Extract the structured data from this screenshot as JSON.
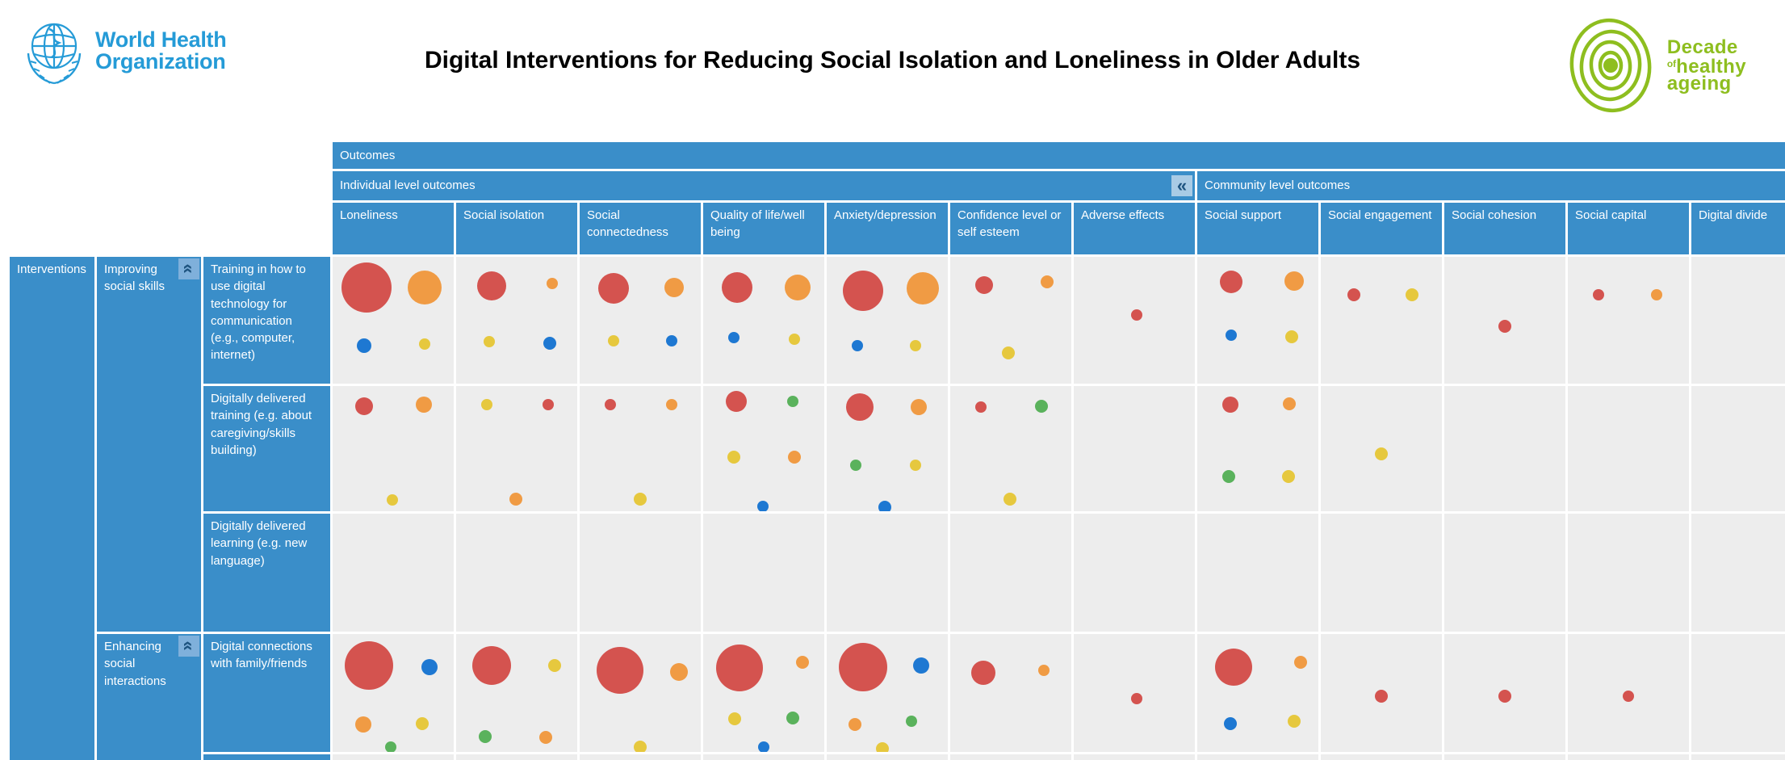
{
  "header": {
    "who_logo": {
      "line1": "World Health",
      "line2": "Organization",
      "color": "#259BD7"
    },
    "title": "Digital Interventions for Reducing Social Isolation and Loneliness in Older Adults",
    "decade_logo": {
      "line1": "Decade",
      "of": "of",
      "line2": "healthy",
      "line3": "ageing",
      "color": "#8EBE1F"
    }
  },
  "matrix": {
    "theme": {
      "header_bg": "#3A8EC9",
      "cell_bg": "#EDEDED",
      "collapse_btn_bg_header": "#A9CBE5",
      "collapse_btn_bg_group": "#7FB0DB",
      "collapse_btn_glyph": "#1E5480"
    },
    "palette": {
      "red": "#D4534F",
      "orange": "#F09B44",
      "blue": "#1E78D2",
      "yellow": "#E6C83E",
      "green": "#5AB25C"
    },
    "outcomes_label": "Outcomes",
    "column_groups": [
      {
        "label": "Individual level outcomes",
        "columns": 7,
        "collapse_icon": "«"
      },
      {
        "label": "Community level outcomes",
        "columns": 5
      }
    ],
    "columns": [
      {
        "id": "loneliness",
        "label": "Loneliness"
      },
      {
        "id": "social_isolation",
        "label": "Social isolation"
      },
      {
        "id": "social_connectedness",
        "label": "Social connectedness"
      },
      {
        "id": "quality_of_life",
        "label": "Quality of life/well being"
      },
      {
        "id": "anxiety_depression",
        "label": "Anxiety/depression"
      },
      {
        "id": "confidence",
        "label": "Confidence level or self esteem"
      },
      {
        "id": "adverse_effects",
        "label": "Adverse effects"
      },
      {
        "id": "social_support",
        "label": "Social support"
      },
      {
        "id": "social_engagement",
        "label": "Social engagement"
      },
      {
        "id": "social_cohesion",
        "label": "Social cohesion"
      },
      {
        "id": "social_capital",
        "label": "Social capital"
      },
      {
        "id": "digital_divide",
        "label": "Digital divide"
      }
    ],
    "interventions_label": "Interventions",
    "row_groups": [
      {
        "label": "Improving social skills",
        "rows": 3,
        "collapse_icon": "«"
      },
      {
        "label": "Enhancing social interactions",
        "rows": 2,
        "collapse_icon": "«"
      }
    ],
    "rows": [
      {
        "label": "Training in how to use digital technology for communication (e.g., computer, internet)",
        "group": 0,
        "cells": {
          "loneliness": [
            {
              "c": "red",
              "r": 31,
              "x": 28,
              "y": 24
            },
            {
              "c": "orange",
              "r": 21,
              "x": 76,
              "y": 24
            },
            {
              "c": "blue",
              "r": 9,
              "x": 26,
              "y": 70
            },
            {
              "c": "yellow",
              "r": 7,
              "x": 76,
              "y": 69
            }
          ],
          "social_isolation": [
            {
              "c": "red",
              "r": 18,
              "x": 29,
              "y": 23
            },
            {
              "c": "orange",
              "r": 7,
              "x": 79,
              "y": 21
            },
            {
              "c": "yellow",
              "r": 7,
              "x": 27,
              "y": 67
            },
            {
              "c": "blue",
              "r": 8,
              "x": 77,
              "y": 68
            }
          ],
          "social_connectedness": [
            {
              "c": "red",
              "r": 19,
              "x": 28,
              "y": 25
            },
            {
              "c": "orange",
              "r": 12,
              "x": 78,
              "y": 24
            },
            {
              "c": "yellow",
              "r": 7,
              "x": 28,
              "y": 66
            },
            {
              "c": "blue",
              "r": 7,
              "x": 76,
              "y": 66
            }
          ],
          "quality_of_life": [
            {
              "c": "red",
              "r": 19,
              "x": 28,
              "y": 24
            },
            {
              "c": "orange",
              "r": 16,
              "x": 78,
              "y": 24
            },
            {
              "c": "blue",
              "r": 7,
              "x": 25,
              "y": 64
            },
            {
              "c": "yellow",
              "r": 7,
              "x": 75,
              "y": 65
            }
          ],
          "anxiety_depression": [
            {
              "c": "red",
              "r": 25,
              "x": 30,
              "y": 27
            },
            {
              "c": "orange",
              "r": 20,
              "x": 79,
              "y": 25
            },
            {
              "c": "blue",
              "r": 7,
              "x": 25,
              "y": 70
            },
            {
              "c": "yellow",
              "r": 7,
              "x": 73,
              "y": 70
            }
          ],
          "confidence": [
            {
              "c": "red",
              "r": 11,
              "x": 28,
              "y": 22
            },
            {
              "c": "orange",
              "r": 8,
              "x": 80,
              "y": 20
            },
            {
              "c": "yellow",
              "r": 8,
              "x": 48,
              "y": 76
            }
          ],
          "adverse_effects": [
            {
              "c": "red",
              "r": 7,
              "x": 52,
              "y": 46
            }
          ],
          "social_support": [
            {
              "c": "red",
              "r": 14,
              "x": 28,
              "y": 20
            },
            {
              "c": "orange",
              "r": 12,
              "x": 80,
              "y": 19
            },
            {
              "c": "blue",
              "r": 7,
              "x": 28,
              "y": 62
            },
            {
              "c": "yellow",
              "r": 8,
              "x": 78,
              "y": 63
            }
          ],
          "social_engagement": [
            {
              "c": "red",
              "r": 8,
              "x": 27,
              "y": 30
            },
            {
              "c": "yellow",
              "r": 8,
              "x": 75,
              "y": 30
            }
          ],
          "social_cohesion": [
            {
              "c": "red",
              "r": 8,
              "x": 50,
              "y": 55
            }
          ],
          "social_capital": [
            {
              "c": "red",
              "r": 7,
              "x": 25,
              "y": 30
            },
            {
              "c": "orange",
              "r": 7,
              "x": 73,
              "y": 30
            }
          ],
          "digital_divide": []
        }
      },
      {
        "label": "Digitally delivered training (e.g. about caregiving/skills building)",
        "group": 0,
        "cells": {
          "loneliness": [
            {
              "c": "red",
              "r": 11,
              "x": 26,
              "y": 16
            },
            {
              "c": "orange",
              "r": 10,
              "x": 75,
              "y": 15
            },
            {
              "c": "yellow",
              "r": 7,
              "x": 49,
              "y": 91
            }
          ],
          "social_isolation": [
            {
              "c": "yellow",
              "r": 7,
              "x": 25,
              "y": 15
            },
            {
              "c": "red",
              "r": 7,
              "x": 76,
              "y": 15
            },
            {
              "c": "orange",
              "r": 8,
              "x": 49,
              "y": 90
            }
          ],
          "social_connectedness": [
            {
              "c": "red",
              "r": 7,
              "x": 25,
              "y": 15
            },
            {
              "c": "orange",
              "r": 7,
              "x": 76,
              "y": 15
            },
            {
              "c": "yellow",
              "r": 8,
              "x": 50,
              "y": 90
            }
          ],
          "quality_of_life": [
            {
              "c": "red",
              "r": 13,
              "x": 27,
              "y": 12
            },
            {
              "c": "green",
              "r": 7,
              "x": 74,
              "y": 12
            },
            {
              "c": "yellow",
              "r": 8,
              "x": 25,
              "y": 57
            },
            {
              "c": "orange",
              "r": 8,
              "x": 75,
              "y": 57
            },
            {
              "c": "blue",
              "r": 7,
              "x": 49,
              "y": 96
            }
          ],
          "anxiety_depression": [
            {
              "c": "red",
              "r": 17,
              "x": 27,
              "y": 17
            },
            {
              "c": "orange",
              "r": 10,
              "x": 76,
              "y": 17
            },
            {
              "c": "green",
              "r": 7,
              "x": 24,
              "y": 63
            },
            {
              "c": "yellow",
              "r": 7,
              "x": 73,
              "y": 63
            },
            {
              "c": "blue",
              "r": 8,
              "x": 48,
              "y": 97
            }
          ],
          "confidence": [
            {
              "c": "red",
              "r": 7,
              "x": 25,
              "y": 17
            },
            {
              "c": "green",
              "r": 8,
              "x": 75,
              "y": 16
            },
            {
              "c": "yellow",
              "r": 8,
              "x": 49,
              "y": 90
            }
          ],
          "adverse_effects": [],
          "social_support": [
            {
              "c": "red",
              "r": 10,
              "x": 27,
              "y": 15
            },
            {
              "c": "orange",
              "r": 8,
              "x": 76,
              "y": 14
            },
            {
              "c": "green",
              "r": 8,
              "x": 26,
              "y": 72
            },
            {
              "c": "yellow",
              "r": 8,
              "x": 75,
              "y": 72
            }
          ],
          "social_engagement": [
            {
              "c": "yellow",
              "r": 8,
              "x": 50,
              "y": 54
            }
          ],
          "social_cohesion": [],
          "social_capital": [],
          "digital_divide": []
        }
      },
      {
        "label": "Digitally delivered learning (e.g. new language)",
        "group": 0,
        "cells": {}
      },
      {
        "label": "Digital connections with family/friends",
        "group": 1,
        "cells": {
          "loneliness": [
            {
              "c": "red",
              "r": 30,
              "x": 30,
              "y": 27
            },
            {
              "c": "blue",
              "r": 10,
              "x": 80,
              "y": 28
            },
            {
              "c": "orange",
              "r": 10,
              "x": 25,
              "y": 77
            },
            {
              "c": "yellow",
              "r": 8,
              "x": 74,
              "y": 76
            },
            {
              "c": "green",
              "r": 7,
              "x": 48,
              "y": 96
            }
          ],
          "social_isolation": [
            {
              "c": "red",
              "r": 24,
              "x": 29,
              "y": 27
            },
            {
              "c": "yellow",
              "r": 8,
              "x": 81,
              "y": 27
            },
            {
              "c": "green",
              "r": 8,
              "x": 24,
              "y": 87
            },
            {
              "c": "orange",
              "r": 8,
              "x": 74,
              "y": 88
            }
          ],
          "social_connectedness": [
            {
              "c": "red",
              "r": 29,
              "x": 33,
              "y": 31
            },
            {
              "c": "orange",
              "r": 11,
              "x": 82,
              "y": 32
            },
            {
              "c": "yellow",
              "r": 8,
              "x": 50,
              "y": 96
            }
          ],
          "quality_of_life": [
            {
              "c": "red",
              "r": 29,
              "x": 30,
              "y": 29
            },
            {
              "c": "orange",
              "r": 8,
              "x": 82,
              "y": 24
            },
            {
              "c": "yellow",
              "r": 8,
              "x": 26,
              "y": 72
            },
            {
              "c": "green",
              "r": 8,
              "x": 74,
              "y": 71
            },
            {
              "c": "blue",
              "r": 7,
              "x": 50,
              "y": 96
            }
          ],
          "anxiety_depression": [
            {
              "c": "red",
              "r": 30,
              "x": 30,
              "y": 28
            },
            {
              "c": "blue",
              "r": 10,
              "x": 78,
              "y": 27
            },
            {
              "c": "orange",
              "r": 8,
              "x": 23,
              "y": 77
            },
            {
              "c": "green",
              "r": 7,
              "x": 70,
              "y": 74
            },
            {
              "c": "yellow",
              "r": 8,
              "x": 46,
              "y": 97
            }
          ],
          "confidence": [
            {
              "c": "red",
              "r": 15,
              "x": 27,
              "y": 33
            },
            {
              "c": "orange",
              "r": 7,
              "x": 77,
              "y": 31
            }
          ],
          "adverse_effects": [
            {
              "c": "red",
              "r": 7,
              "x": 52,
              "y": 55
            }
          ],
          "social_support": [
            {
              "c": "red",
              "r": 23,
              "x": 30,
              "y": 28
            },
            {
              "c": "orange",
              "r": 8,
              "x": 85,
              "y": 24
            },
            {
              "c": "blue",
              "r": 8,
              "x": 27,
              "y": 76
            },
            {
              "c": "yellow",
              "r": 8,
              "x": 80,
              "y": 74
            }
          ],
          "social_engagement": [
            {
              "c": "red",
              "r": 8,
              "x": 50,
              "y": 53
            }
          ],
          "social_cohesion": [
            {
              "c": "red",
              "r": 8,
              "x": 50,
              "y": 53
            }
          ],
          "social_capital": [
            {
              "c": "red",
              "r": 7,
              "x": 50,
              "y": 53
            }
          ],
          "digital_divide": []
        }
      },
      {
        "label": "",
        "group": 1,
        "partial": true,
        "cells": {}
      }
    ]
  }
}
